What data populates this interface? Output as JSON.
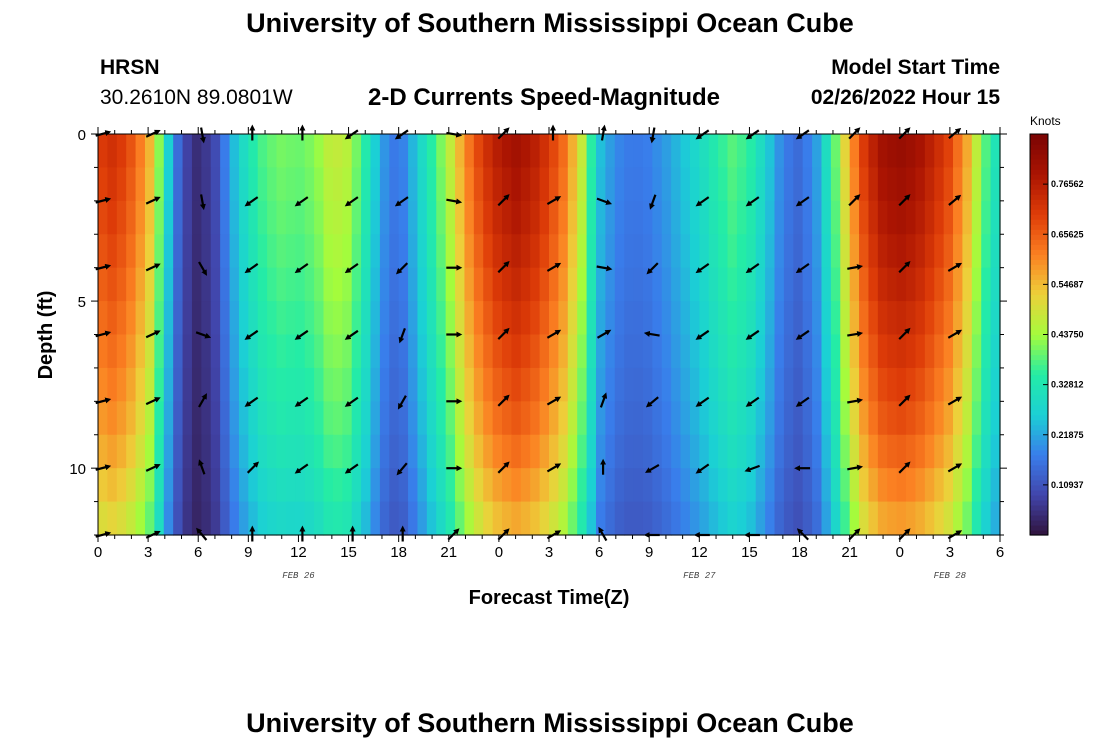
{
  "header": {
    "title": "University of Southern Mississippi Ocean Cube",
    "station": "HRSN",
    "coords": "30.2610N  89.0801W",
    "subtitle": "2-D Currents Speed-Magnitude",
    "model_start_label": "Model Start Time",
    "model_start_value": "02/26/2022 Hour 15"
  },
  "footer": {
    "title": "University of Southern Mississippi Ocean Cube"
  },
  "chart_data": {
    "type": "heatmap",
    "title": "2-D Currents Speed-Magnitude",
    "xlabel": "Forecast Time(Z)",
    "ylabel": "Depth (ft)",
    "x_range_hours": [
      0,
      54
    ],
    "y_range_ft": [
      0,
      12
    ],
    "x_tick_labels": [
      "0",
      "3",
      "6",
      "9",
      "12",
      "15",
      "18",
      "21",
      "0",
      "3",
      "6",
      "9",
      "12",
      "15",
      "18",
      "21",
      "0",
      "3",
      "6"
    ],
    "y_tick_labels": [
      "0",
      "5",
      "10"
    ],
    "y_tick_values": [
      0,
      5,
      10
    ],
    "date_labels": [
      {
        "text": "FEB 26",
        "hour": 12
      },
      {
        "text": "FEB 27",
        "hour": 36
      },
      {
        "text": "FEB 28",
        "hour": 51
      }
    ],
    "colorbar": {
      "unit": "Knots",
      "min": 0.0,
      "max": 0.875,
      "tick_labels": [
        "0.76562",
        "0.65625",
        "0.54687",
        "0.43750",
        "0.32812",
        "0.21875",
        "0.10937"
      ],
      "tick_values": [
        0.76562,
        0.65625,
        0.54687,
        0.4375,
        0.32812,
        0.21875,
        0.10937
      ]
    },
    "speed_profile_knots": [
      {
        "hour": 0,
        "speed": 0.67
      },
      {
        "hour": 1,
        "speed": 0.7
      },
      {
        "hour": 2,
        "speed": 0.64
      },
      {
        "hour": 3,
        "speed": 0.55
      },
      {
        "hour": 3.5,
        "speed": 0.45
      },
      {
        "hour": 4,
        "speed": 0.3
      },
      {
        "hour": 4.5,
        "speed": 0.2
      },
      {
        "hour": 5,
        "speed": 0.1
      },
      {
        "hour": 6,
        "speed": 0.04
      },
      {
        "hour": 7,
        "speed": 0.09
      },
      {
        "hour": 8,
        "speed": 0.22
      },
      {
        "hour": 9,
        "speed": 0.31
      },
      {
        "hour": 10,
        "speed": 0.37
      },
      {
        "hour": 11,
        "speed": 0.39
      },
      {
        "hour": 12,
        "speed": 0.38
      },
      {
        "hour": 13,
        "speed": 0.4
      },
      {
        "hour": 14,
        "speed": 0.46
      },
      {
        "hour": 15,
        "speed": 0.44
      },
      {
        "hour": 16,
        "speed": 0.33
      },
      {
        "hour": 17,
        "speed": 0.2
      },
      {
        "hour": 18,
        "speed": 0.15
      },
      {
        "hour": 19,
        "speed": 0.24
      },
      {
        "hour": 20,
        "speed": 0.34
      },
      {
        "hour": 21,
        "speed": 0.44
      },
      {
        "hour": 22,
        "speed": 0.58
      },
      {
        "hour": 23,
        "speed": 0.68
      },
      {
        "hour": 24,
        "speed": 0.74
      },
      {
        "hour": 25,
        "speed": 0.77
      },
      {
        "hour": 26,
        "speed": 0.74
      },
      {
        "hour": 27,
        "speed": 0.68
      },
      {
        "hour": 28,
        "speed": 0.6
      },
      {
        "hour": 29,
        "speed": 0.45
      },
      {
        "hour": 30,
        "speed": 0.24
      },
      {
        "hour": 31,
        "speed": 0.18
      },
      {
        "hour": 32,
        "speed": 0.16
      },
      {
        "hour": 33,
        "speed": 0.17
      },
      {
        "hour": 34,
        "speed": 0.2
      },
      {
        "hour": 35,
        "speed": 0.24
      },
      {
        "hour": 36,
        "speed": 0.28
      },
      {
        "hour": 37,
        "speed": 0.33
      },
      {
        "hour": 38,
        "speed": 0.37
      },
      {
        "hour": 39,
        "speed": 0.34
      },
      {
        "hour": 40,
        "speed": 0.26
      },
      {
        "hour": 41,
        "speed": 0.17
      },
      {
        "hour": 42,
        "speed": 0.14
      },
      {
        "hour": 43,
        "speed": 0.2
      },
      {
        "hour": 44,
        "speed": 0.35
      },
      {
        "hour": 45,
        "speed": 0.55
      },
      {
        "hour": 46,
        "speed": 0.7
      },
      {
        "hour": 47,
        "speed": 0.77
      },
      {
        "hour": 48,
        "speed": 0.79
      },
      {
        "hour": 49,
        "speed": 0.77
      },
      {
        "hour": 50,
        "speed": 0.72
      },
      {
        "hour": 51,
        "speed": 0.66
      },
      {
        "hour": 52,
        "speed": 0.55
      },
      {
        "hour": 53,
        "speed": 0.38
      },
      {
        "hour": 54,
        "speed": 0.28
      }
    ],
    "depth_factor": [
      {
        "depth_ft": 0,
        "factor": 1.05
      },
      {
        "depth_ft": 3,
        "factor": 1.0
      },
      {
        "depth_ft": 6,
        "factor": 0.93
      },
      {
        "depth_ft": 9,
        "factor": 0.85
      },
      {
        "depth_ft": 12,
        "factor": 0.72
      }
    ],
    "vector_hours": [
      0,
      3,
      6,
      9,
      12,
      15,
      18,
      21,
      24,
      27,
      30,
      33,
      36,
      39,
      42,
      45,
      48,
      51
    ],
    "vector_depths_ft": [
      0,
      2,
      4,
      6,
      8,
      10,
      12
    ],
    "vector_direction_deg": [
      [
        75,
        65,
        170,
        0,
        0,
        235,
        235,
        100,
        45,
        0,
        10,
        190,
        235,
        235,
        235,
        45,
        45,
        50
      ],
      [
        75,
        65,
        170,
        235,
        235,
        235,
        235,
        100,
        45,
        60,
        110,
        200,
        235,
        235,
        235,
        45,
        45,
        50
      ],
      [
        75,
        65,
        150,
        235,
        235,
        235,
        225,
        90,
        45,
        60,
        100,
        225,
        235,
        235,
        235,
        80,
        45,
        60
      ],
      [
        75,
        65,
        110,
        235,
        235,
        235,
        200,
        90,
        45,
        60,
        60,
        280,
        235,
        235,
        235,
        80,
        45,
        60
      ],
      [
        75,
        65,
        30,
        235,
        235,
        235,
        210,
        90,
        45,
        60,
        20,
        230,
        235,
        235,
        235,
        80,
        45,
        60
      ],
      [
        75,
        65,
        340,
        45,
        235,
        235,
        220,
        90,
        45,
        60,
        0,
        240,
        235,
        250,
        270,
        80,
        45,
        60
      ],
      [
        75,
        65,
        320,
        0,
        0,
        0,
        0,
        45,
        45,
        60,
        330,
        270,
        270,
        270,
        315,
        45,
        45,
        60
      ]
    ]
  }
}
